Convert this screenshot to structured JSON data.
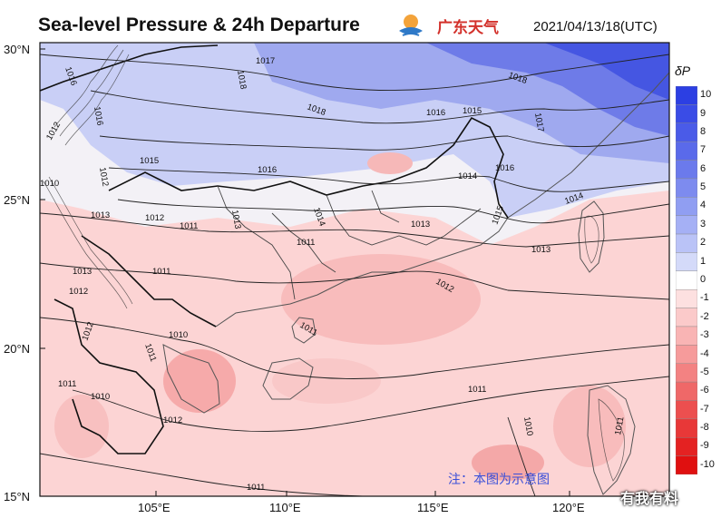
{
  "header": {
    "title": "Sea-level Pressure & 24h Departure",
    "logo_text": "广东天气",
    "timestamp": "2021/04/13/18(UTC)"
  },
  "map": {
    "lat_labels": [
      "30°N",
      "25°N",
      "20°N",
      "15°N"
    ],
    "lon_labels": [
      "105°E",
      "110°E",
      "115°E",
      "120°E"
    ],
    "isobar_labels": [
      "1016",
      "1018",
      "1017",
      "1018",
      "1018",
      "1016",
      "1015",
      "1017",
      "1016",
      "1016",
      "1015",
      "1014",
      "1014",
      "1016",
      "1015",
      "1013",
      "1014",
      "1012",
      "1010",
      "1012",
      "1011",
      "1012",
      "1013",
      "1013",
      "1013",
      "1013",
      "1011",
      "1011",
      "1012",
      "1011",
      "1012",
      "1010",
      "1011",
      "1011",
      "1012",
      "1011",
      "1010",
      "1010",
      "1012",
      "1011",
      "1011"
    ],
    "note": "注：本图为示意图",
    "watermark": "有我有料"
  },
  "colorbar": {
    "title": "δP",
    "levels": [
      "10",
      "9",
      "8",
      "7",
      "6",
      "5",
      "4",
      "3",
      "2",
      "1",
      "0",
      "-1",
      "-2",
      "-3",
      "-4",
      "-5",
      "-6",
      "-7",
      "-8",
      "-9",
      "-10"
    ],
    "colors": [
      "#2c3fe3",
      "#3a4ce6",
      "#4a5be8",
      "#5a6aea",
      "#6b7aec",
      "#7d8bef",
      "#909ef2",
      "#a5b0f5",
      "#bac3f7",
      "#d4daf9",
      "#ffffff",
      "#fde0e0",
      "#fbcaca",
      "#f9b4b4",
      "#f69b9b",
      "#f38282",
      "#ef6868",
      "#ec4f4f",
      "#e83838",
      "#e42222",
      "#e01010"
    ]
  }
}
